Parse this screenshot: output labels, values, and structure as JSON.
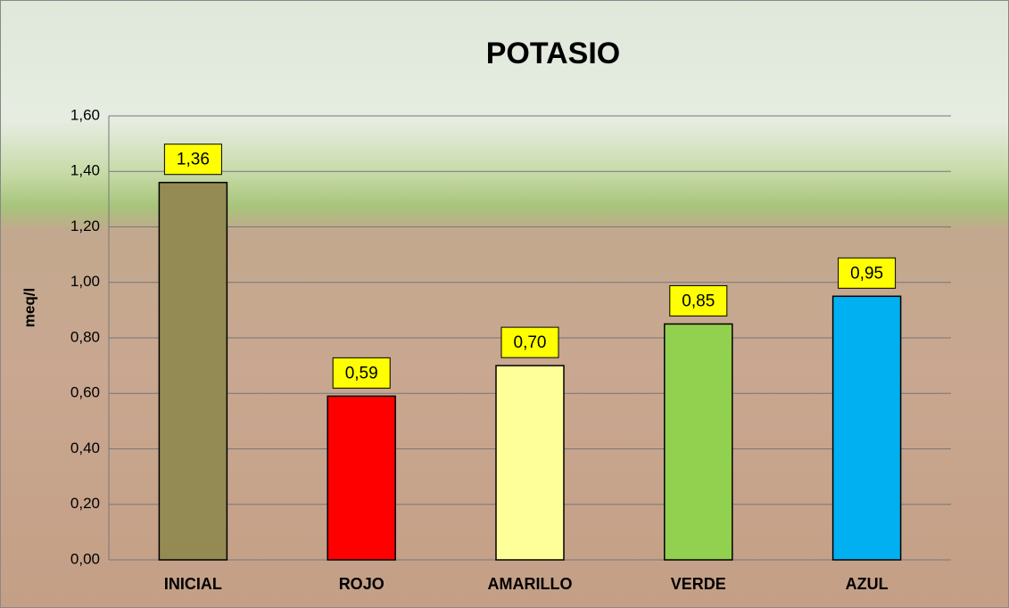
{
  "chart_data": {
    "type": "bar",
    "title": "POTASIO",
    "y_label": "meq/l",
    "categories": [
      "INICIAL",
      "ROJO",
      "AMARILLO",
      "VERDE",
      "AZUL"
    ],
    "values": [
      1.36,
      0.59,
      0.7,
      0.85,
      0.95
    ],
    "value_labels": [
      "1,36",
      "0,59",
      "0,70",
      "0,85",
      "0,95"
    ],
    "colors": [
      "#948a54",
      "#ff0000",
      "#ffff99",
      "#92d050",
      "#00b0f0"
    ],
    "ylim": [
      0,
      1.6
    ],
    "yticks": [
      {
        "value": 0,
        "label": "0,00"
      },
      {
        "value": 0.2,
        "label": "0,20"
      },
      {
        "value": 0.4,
        "label": "0,40"
      },
      {
        "value": 0.6,
        "label": "0,60"
      },
      {
        "value": 0.8,
        "label": "0,80"
      },
      {
        "value": 1.0,
        "label": "1,00"
      },
      {
        "value": 1.2,
        "label": "1,20"
      },
      {
        "value": 1.4,
        "label": "1,40"
      },
      {
        "value": 1.6,
        "label": "1,60"
      }
    ],
    "grid": true
  }
}
